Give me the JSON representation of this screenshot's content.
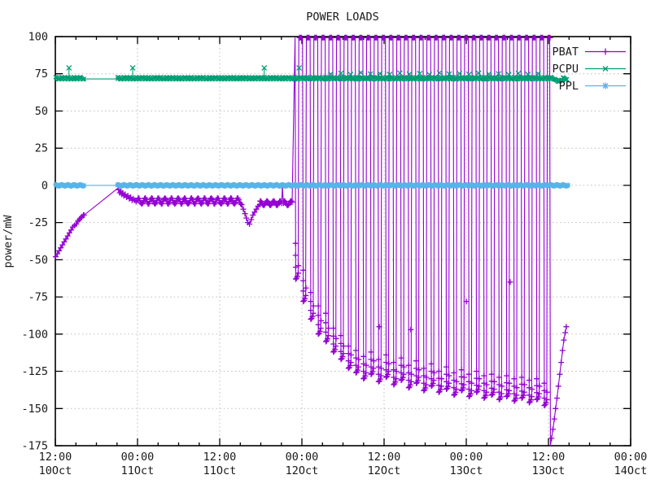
{
  "chart_data": {
    "type": "line",
    "title": "POWER LOADS",
    "ylabel": "power/mW",
    "ylim": [
      -175,
      100
    ],
    "y_ticks": [
      100,
      75,
      50,
      25,
      0,
      -25,
      -50,
      -75,
      -100,
      -125,
      -150,
      -175
    ],
    "x_range_hours": [
      0,
      84
    ],
    "x_major_every_h": 12,
    "x_minor_every_h": 3,
    "grid": true,
    "x_ticks": [
      {
        "time": "12:00",
        "date": "10Oct"
      },
      {
        "time": "00:00",
        "date": "11Oct"
      },
      {
        "time": "12:00",
        "date": "11Oct"
      },
      {
        "time": "00:00",
        "date": "12Oct"
      },
      {
        "time": "12:00",
        "date": "12Oct"
      },
      {
        "time": "00:00",
        "date": "13Oct"
      },
      {
        "time": "12:00",
        "date": "13Oct"
      },
      {
        "time": "00:00",
        "date": "14Oct"
      }
    ],
    "legend": {
      "position": "top-right",
      "entries": [
        {
          "label": "PBAT",
          "color": "#9400d3",
          "marker": "plus"
        },
        {
          "label": "PCPU",
          "color": "#009e73",
          "marker": "cross"
        },
        {
          "label": "PPL",
          "color": "#56b4e9",
          "marker": "asterisk"
        }
      ]
    },
    "series": {
      "PBAT": {
        "color": "#9400d3",
        "marker": "plus",
        "climb_points": [
          [
            0.05,
            -48
          ],
          [
            0.3,
            -46
          ],
          [
            0.55,
            -44
          ],
          [
            0.8,
            -42
          ],
          [
            1.05,
            -40
          ],
          [
            1.3,
            -38
          ],
          [
            1.55,
            -36
          ],
          [
            1.8,
            -34
          ],
          [
            2.05,
            -32
          ],
          [
            2.3,
            -30
          ],
          [
            2.55,
            -28
          ],
          [
            2.8,
            -27
          ],
          [
            3.05,
            -26
          ],
          [
            3.3,
            -24
          ],
          [
            3.5,
            -23
          ],
          [
            3.7,
            -22
          ],
          [
            3.9,
            -21
          ],
          [
            4.1,
            -20
          ],
          [
            4.2,
            -20
          ]
        ],
        "gap_line_end": [
          9.1,
          -2
        ],
        "descend_points": [
          [
            9.25,
            -3
          ],
          [
            9.4,
            -5
          ],
          [
            9.55,
            -4
          ],
          [
            9.7,
            -6
          ],
          [
            9.85,
            -5
          ],
          [
            10.0,
            -7
          ],
          [
            10.2,
            -6
          ],
          [
            10.4,
            -8
          ],
          [
            10.6,
            -7
          ],
          [
            10.8,
            -9
          ],
          [
            11.0,
            -8
          ],
          [
            11.2,
            -10
          ],
          [
            11.4,
            -9
          ],
          [
            11.6,
            -10
          ],
          [
            11.8,
            -11
          ],
          [
            12.0,
            -10
          ]
        ],
        "band1": {
          "t0": 12.1,
          "t1": 27.1,
          "v": -10.5,
          "jit": 2.0,
          "step": 0.13
        },
        "dip_points": [
          [
            27.2,
            -13
          ],
          [
            27.45,
            -16
          ],
          [
            27.7,
            -19
          ],
          [
            27.9,
            -22
          ],
          [
            28.1,
            -25
          ],
          [
            28.35,
            -26
          ],
          [
            28.6,
            -23
          ],
          [
            28.85,
            -20
          ],
          [
            29.1,
            -18
          ],
          [
            29.35,
            -16
          ],
          [
            29.6,
            -14
          ],
          [
            29.85,
            -13
          ]
        ],
        "band2": {
          "t0": 29.9,
          "t1": 33.0,
          "v": -12,
          "jit": 1.5,
          "step": 0.13
        },
        "spike_points": [
          [
            33.05,
            -12
          ],
          [
            33.15,
            -1
          ],
          [
            33.3,
            -12
          ]
        ],
        "band3": {
          "t0": 33.4,
          "t1": 34.7,
          "v": -12,
          "jit": 1.5,
          "step": 0.13
        },
        "cycles": [
          [
            35.0,
            -63,
            -39
          ],
          [
            36.1,
            -78,
            -57
          ],
          [
            37.2,
            -90,
            -72
          ],
          [
            38.3,
            -100,
            -81
          ],
          [
            39.4,
            -105,
            -86
          ],
          [
            40.5,
            -112,
            -96
          ],
          [
            41.6,
            -117,
            -101
          ],
          [
            42.7,
            -123,
            -108
          ],
          [
            43.8,
            -126,
            -111
          ],
          [
            44.9,
            -130,
            -115
          ],
          [
            46.0,
            -127,
            -112
          ],
          [
            47.1,
            -132,
            -117
          ],
          [
            48.2,
            -129,
            -114
          ],
          [
            49.3,
            -134,
            -119
          ],
          [
            50.4,
            -131,
            -116
          ],
          [
            51.5,
            -136,
            -121
          ],
          [
            52.6,
            -133,
            -118
          ],
          [
            53.7,
            -138,
            -123
          ],
          [
            54.8,
            -135,
            -120
          ],
          [
            55.9,
            -139,
            -125
          ],
          [
            57.0,
            -137,
            -122
          ],
          [
            58.1,
            -141,
            -126
          ],
          [
            59.2,
            -138,
            -124
          ],
          [
            60.3,
            -142,
            -127
          ],
          [
            61.4,
            -139,
            -125
          ],
          [
            62.5,
            -143,
            -128
          ],
          [
            63.6,
            -141,
            -127
          ],
          [
            64.7,
            -144,
            -129
          ],
          [
            65.8,
            -142,
            -128
          ],
          [
            66.9,
            -145,
            -130
          ],
          [
            68.0,
            -143,
            -129
          ],
          [
            69.1,
            -146,
            -131
          ],
          [
            70.2,
            -144,
            -130
          ],
          [
            71.3,
            -148,
            -133
          ]
        ],
        "mid_markers": [
          [
            47.3,
            -95
          ],
          [
            51.9,
            -97
          ],
          [
            60.0,
            -78
          ],
          [
            66.4,
            -65
          ]
        ],
        "final_drop": [
          [
            72.18,
            99.3
          ],
          [
            72.28,
            -175
          ]
        ],
        "recovery_points": [
          [
            72.45,
            -170
          ],
          [
            72.65,
            -164
          ],
          [
            72.85,
            -157
          ],
          [
            73.05,
            -150
          ],
          [
            73.25,
            -143
          ],
          [
            73.45,
            -135
          ],
          [
            73.65,
            -127
          ],
          [
            73.85,
            -119
          ],
          [
            74.05,
            -111
          ],
          [
            74.25,
            -104
          ],
          [
            74.45,
            -99
          ],
          [
            74.6,
            -95
          ]
        ]
      },
      "PCPU": {
        "color": "#009e73",
        "marker": "cross",
        "bands": [
          {
            "t0": 0.02,
            "t1": 4.2,
            "v": 72,
            "jit": 0.8,
            "step": 0.12
          },
          {
            "t0": 9.1,
            "t1": 73.0,
            "v": 72,
            "jit": 0.8,
            "step": 0.12
          },
          {
            "t0": 73.0,
            "t1": 74.1,
            "v": 70.3,
            "jit": 0.7,
            "step": 0.12
          },
          {
            "t0": 74.1,
            "t1": 74.8,
            "v": 71.8,
            "jit": 0.7,
            "step": 0.12
          }
        ],
        "gap_line": [
          [
            4.2,
            71.5
          ],
          [
            9.1,
            71.5
          ]
        ],
        "spikes": [
          [
            2.0,
            79
          ],
          [
            11.3,
            79
          ],
          [
            30.5,
            79
          ],
          [
            35.6,
            79
          ]
        ],
        "scatter": [
          [
            40.2,
            74.8
          ],
          [
            41.7,
            75.3
          ],
          [
            43.1,
            74.5
          ],
          [
            44.6,
            75.8
          ],
          [
            46.0,
            74.9
          ],
          [
            47.4,
            75.2
          ],
          [
            48.8,
            74.6
          ],
          [
            50.3,
            75.5
          ],
          [
            51.7,
            74.8
          ],
          [
            53.2,
            75.1
          ],
          [
            54.6,
            74.5
          ],
          [
            56.1,
            75.6
          ],
          [
            57.5,
            74.9
          ],
          [
            59.0,
            75.2
          ],
          [
            60.4,
            74.6
          ],
          [
            61.8,
            75.4
          ],
          [
            63.3,
            74.8
          ],
          [
            64.7,
            75.0
          ],
          [
            66.2,
            74.5
          ],
          [
            67.6,
            75.3
          ],
          [
            69.0,
            74.7
          ],
          [
            70.5,
            75.1
          ]
        ]
      },
      "PPL": {
        "color": "#56b4e9",
        "marker": "asterisk",
        "bands": [
          {
            "t0": 0.02,
            "t1": 4.2,
            "v": 0,
            "jit": 0.6,
            "step": 0.12
          },
          {
            "t0": 9.1,
            "t1": 74.9,
            "v": 0,
            "jit": 0.6,
            "step": 0.12
          }
        ],
        "gap_line": [
          [
            4.2,
            0
          ],
          [
            9.1,
            0
          ]
        ]
      }
    }
  },
  "colors": {
    "background": "#ffffff",
    "border": "#000000",
    "grid": "#bdbdbd",
    "text": "#1a1a1a"
  }
}
